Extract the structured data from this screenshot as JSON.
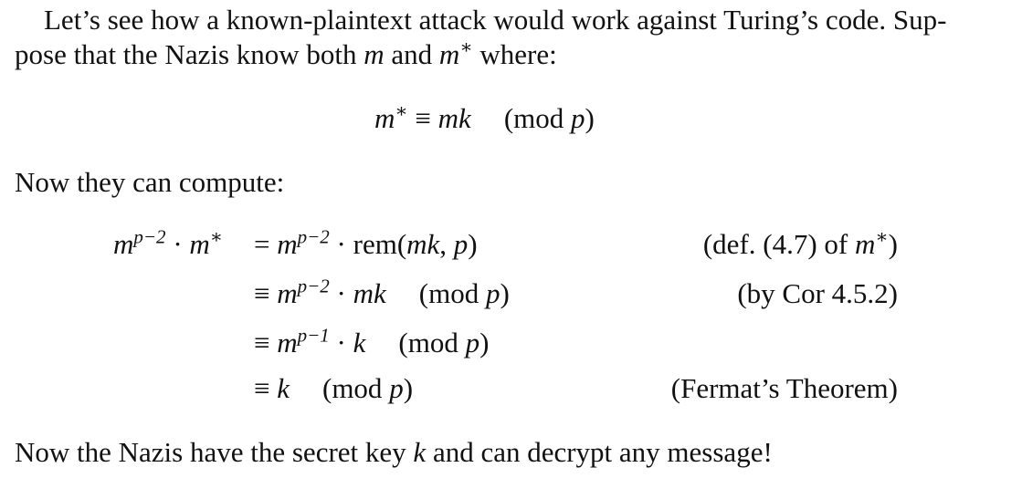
{
  "intro": {
    "line1": "Let’s see how a known-plaintext attack would work against Turing’s code. Sup-",
    "line2_pre": "pose that the Nazis know both ",
    "var_m": "m",
    "and": " and ",
    "var_mstar": "m",
    "star": "∗",
    "line2_post": " where:"
  },
  "display_eq": {
    "lhs": "m",
    "lhs_star": "∗",
    "rel": " ≡ ",
    "rhs": "mk",
    "mod_open": "(mod ",
    "mod_var": "p",
    "mod_close": ")"
  },
  "compute_text": "Now they can compute:",
  "derivation": [
    {
      "lhs_m": "m",
      "lhs_exp": "p−2",
      "lhs_dot": " · ",
      "lhs_m2": "m",
      "lhs_star": "∗",
      "rel": "=",
      "rhs_m": "m",
      "rhs_exp": "p−2",
      "rhs_rest": " · rem(",
      "rhs_mk": "mk",
      "rhs_comma": ", ",
      "rhs_p": "p",
      "rhs_close": ")",
      "note_pre": "(def. (4.7) of ",
      "note_m": "m",
      "note_star": "∗",
      "note_post": ")"
    },
    {
      "rel": "≡",
      "rhs_m": "m",
      "rhs_exp": "p−2",
      "rhs_dot": " · ",
      "rhs_mk": "mk",
      "mod_open": "(mod ",
      "mod_var": "p",
      "mod_close": ")",
      "note": "(by Cor 4.5.2)"
    },
    {
      "rel": "≡",
      "rhs_m": "m",
      "rhs_exp": "p−1",
      "rhs_dot": " · ",
      "rhs_k": "k",
      "mod_open": "(mod ",
      "mod_var": "p",
      "mod_close": ")"
    },
    {
      "rel": "≡",
      "rhs_k": "k",
      "mod_open": "(mod ",
      "mod_var": "p",
      "mod_close": ")",
      "note": "(Fermat’s Theorem)"
    }
  ],
  "conclusion": {
    "pre": "Now the Nazis have the secret key ",
    "var_k": "k",
    "post": " and can decrypt any message!"
  }
}
